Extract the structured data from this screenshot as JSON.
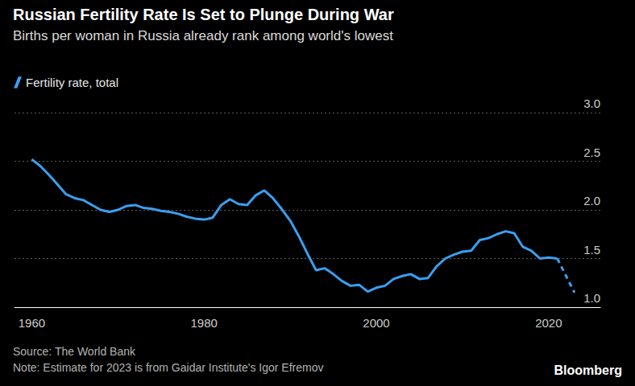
{
  "chart_data": {
    "type": "line",
    "title": "Russian Fertility Rate Is Set to Plunge During War",
    "subtitle": "Births per woman in Russia already rank among world's lowest",
    "source": "Source: The World Bank",
    "note": "Note: Estimate for 2023 is from Gaidar Institute's Igor Efremov",
    "credit": "Bloomberg",
    "x": [
      1960,
      1961,
      1962,
      1963,
      1964,
      1965,
      1966,
      1967,
      1968,
      1969,
      1970,
      1971,
      1972,
      1973,
      1974,
      1975,
      1976,
      1977,
      1978,
      1979,
      1980,
      1981,
      1982,
      1983,
      1984,
      1985,
      1986,
      1987,
      1988,
      1989,
      1990,
      1991,
      1992,
      1993,
      1994,
      1995,
      1996,
      1997,
      1998,
      1999,
      2000,
      2001,
      2002,
      2003,
      2004,
      2005,
      2006,
      2007,
      2008,
      2009,
      2010,
      2011,
      2012,
      2013,
      2014,
      2015,
      2016,
      2017,
      2018,
      2019,
      2020,
      2021,
      2022,
      2023
    ],
    "series": [
      {
        "name": "Fertility rate, total",
        "color": "#3a9ff0",
        "line_style": "solid",
        "values": [
          2.52,
          2.45,
          2.36,
          2.26,
          2.16,
          2.12,
          2.1,
          2.05,
          2.0,
          1.98,
          2.0,
          2.04,
          2.05,
          2.02,
          2.01,
          1.99,
          1.98,
          1.96,
          1.93,
          1.91,
          1.9,
          1.92,
          2.05,
          2.11,
          2.06,
          2.05,
          2.15,
          2.2,
          2.12,
          2.01,
          1.89,
          1.73,
          1.55,
          1.38,
          1.4,
          1.34,
          1.27,
          1.22,
          1.23,
          1.16,
          1.2,
          1.22,
          1.29,
          1.32,
          1.34,
          1.29,
          1.3,
          1.42,
          1.5,
          1.54,
          1.57,
          1.58,
          1.69,
          1.71,
          1.75,
          1.78,
          1.76,
          1.62,
          1.58,
          1.5,
          1.51,
          1.5,
          null,
          null
        ]
      },
      {
        "color": "#3a9ff0",
        "line_style": "dashed",
        "values": [
          null,
          null,
          null,
          null,
          null,
          null,
          null,
          null,
          null,
          null,
          null,
          null,
          null,
          null,
          null,
          null,
          null,
          null,
          null,
          null,
          null,
          null,
          null,
          null,
          null,
          null,
          null,
          null,
          null,
          null,
          null,
          null,
          null,
          null,
          null,
          null,
          null,
          null,
          null,
          null,
          null,
          null,
          null,
          null,
          null,
          null,
          null,
          null,
          null,
          null,
          null,
          null,
          null,
          null,
          null,
          null,
          null,
          null,
          null,
          null,
          null,
          1.5,
          null,
          1.15
        ]
      }
    ],
    "xlim": [
      1958,
      2026
    ],
    "xticks": [
      1960,
      1980,
      2000,
      2020
    ],
    "ylim": [
      1,
      3
    ],
    "yticks": [
      {
        "value": 1,
        "label": "1.0"
      },
      {
        "value": 1.5,
        "label": "1.5"
      },
      {
        "value": 2,
        "label": "2.0"
      },
      {
        "value": 2.5,
        "label": "2.5"
      },
      {
        "value": 3,
        "label": "3.0"
      }
    ],
    "grid": true,
    "legend": "top-left"
  }
}
